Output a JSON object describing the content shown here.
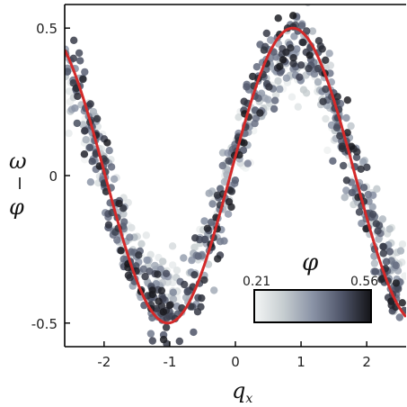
{
  "chart_data": {
    "type": "scatter",
    "xlabel": "q",
    "xlabel_subscript": "x",
    "ylabel_numerator": "ω",
    "ylabel_denominator": "φ",
    "xlim": [
      -2.6,
      2.6
    ],
    "ylim": [
      -0.58,
      0.58
    ],
    "xticks": [
      -2,
      -1,
      0,
      1,
      2
    ],
    "xtick_labels": [
      "-2",
      "-1",
      "0",
      "1",
      "2"
    ],
    "yticks": [
      -0.5,
      0,
      0.5
    ],
    "ytick_labels": [
      "-0.5",
      "0",
      "0.5"
    ],
    "grid": false,
    "series": [
      {
        "name": "",
        "kind": "fit-curve",
        "function": "0.5*sin(1.65*x + 0.13)",
        "color": "#d42a2a"
      },
      {
        "name": "",
        "kind": "scatter-cloud",
        "center_function": "0.42*sin(1.65*x + 0.13)",
        "spread": 0.09,
        "count": 900,
        "color_by": "phi"
      }
    ],
    "colorbar": {
      "title": "φ",
      "min": 0.21,
      "max": 0.56,
      "min_label": "0.21",
      "max_label": "0.56",
      "colors": [
        "#f4f6f6",
        "#c6cdd0",
        "#8a93a6",
        "#4f5569",
        "#141418"
      ]
    }
  }
}
